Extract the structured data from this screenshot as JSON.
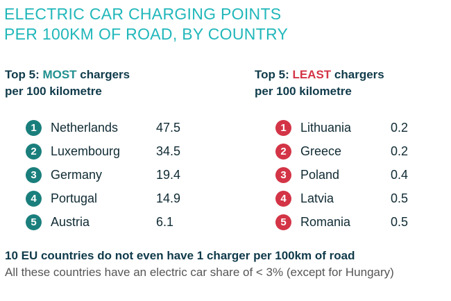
{
  "title": {
    "line1": "ELECTRIC CAR CHARGING POINTS",
    "line2": "PER 100KM OF ROAD, BY COUNTRY"
  },
  "most": {
    "heading_prefix": "Top 5: ",
    "heading_emphasis": "MOST",
    "heading_suffix": " chargers",
    "heading_line2": "per 100 kilometre",
    "color": "#1a7f7c",
    "items": [
      {
        "rank": "1",
        "country": "Netherlands",
        "value": "47.5"
      },
      {
        "rank": "2",
        "country": "Luxembourg",
        "value": "34.5"
      },
      {
        "rank": "3",
        "country": "Germany",
        "value": "19.4"
      },
      {
        "rank": "4",
        "country": "Portugal",
        "value": "14.9"
      },
      {
        "rank": "5",
        "country": "Austria",
        "value": "6.1"
      }
    ]
  },
  "least": {
    "heading_prefix": "Top 5: ",
    "heading_emphasis": "LEAST",
    "heading_suffix": " chargers",
    "heading_line2": "per 100 kilometre",
    "color": "#d33446",
    "items": [
      {
        "rank": "1",
        "country": "Lithuania",
        "value": "0.2"
      },
      {
        "rank": "2",
        "country": "Greece",
        "value": "0.2"
      },
      {
        "rank": "3",
        "country": "Poland",
        "value": "0.4"
      },
      {
        "rank": "4",
        "country": "Latvia",
        "value": "0.5"
      },
      {
        "rank": "5",
        "country": "Romania",
        "value": "0.5"
      }
    ]
  },
  "footer": {
    "headline": "10 EU countries do not even have 1 charger per 100km of road",
    "note": "All these countries have an electric car share of < 3% (except for Hungary)"
  }
}
